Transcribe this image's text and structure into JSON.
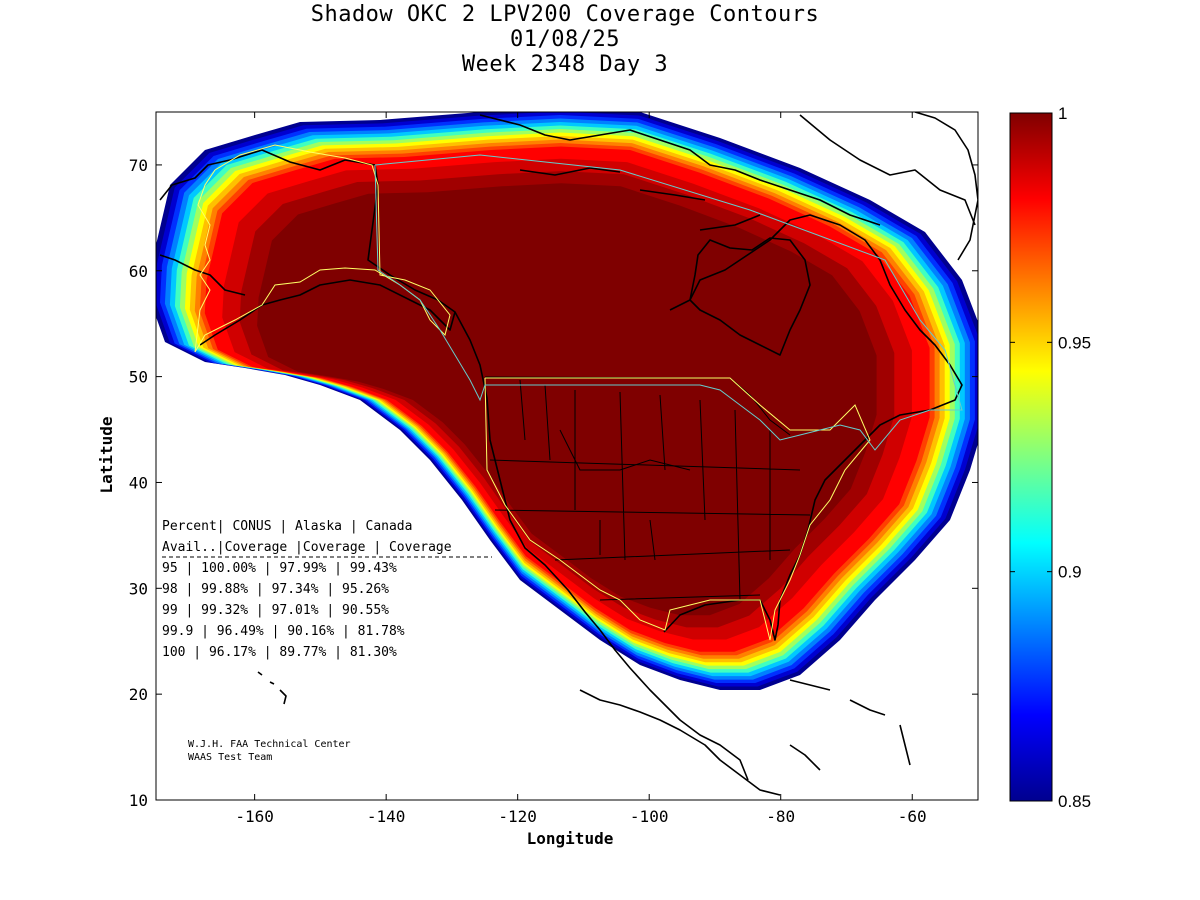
{
  "title": {
    "line1": "Shadow OKC 2 LPV200 Coverage Contours",
    "line2": "01/08/25",
    "line3": "Week 2348 Day 3"
  },
  "axes": {
    "xlabel": "Longitude",
    "ylabel": "Latitude",
    "xlim": [
      -175,
      -50
    ],
    "ylim": [
      10,
      75
    ],
    "xticks": [
      -160,
      -140,
      -120,
      -100,
      -80,
      -60
    ],
    "yticks": [
      10,
      20,
      30,
      40,
      50,
      60,
      70
    ]
  },
  "colorbar": {
    "min": 0.85,
    "max": 1,
    "ticks": [
      {
        "value": 1,
        "label": "1"
      },
      {
        "value": 0.95,
        "label": "0.95"
      },
      {
        "value": 0.9,
        "label": "0.9"
      },
      {
        "value": 0.85,
        "label": "0.85"
      }
    ]
  },
  "table": {
    "header1": [
      "Percent",
      "CONUS",
      "Alaska",
      "Canada"
    ],
    "header2": [
      "Avail.",
      "Coverage",
      "Coverage",
      "Coverage"
    ],
    "rows": [
      {
        "avail": "95",
        "conus": "100.00%",
        "alaska": "97.99%",
        "canada": "99.43%"
      },
      {
        "avail": "98",
        "conus": "99.88%",
        "alaska": "97.34%",
        "canada": "95.26%"
      },
      {
        "avail": "99",
        "conus": "99.32%",
        "alaska": "97.01%",
        "canada": "90.55%"
      },
      {
        "avail": "99.9",
        "conus": "96.49%",
        "alaska": "90.16%",
        "canada": "81.78%"
      },
      {
        "avail": "100",
        "conus": "96.17%",
        "alaska": "89.77%",
        "canada": "81.30%"
      }
    ]
  },
  "credits": {
    "line1": "W.J.H. FAA Technical Center",
    "line2": "WAAS Test Team"
  },
  "colors": {
    "full": "#7f0000",
    "red": "#ff1a00",
    "orange": "#ff8c00",
    "yellow": "#ffff00",
    "cyan": "#00ffff",
    "blue": "#0040ff",
    "navy": "#00008f",
    "coast": "#000000",
    "region_yellow": "#ffff66",
    "region_cyan": "#66cccc"
  }
}
